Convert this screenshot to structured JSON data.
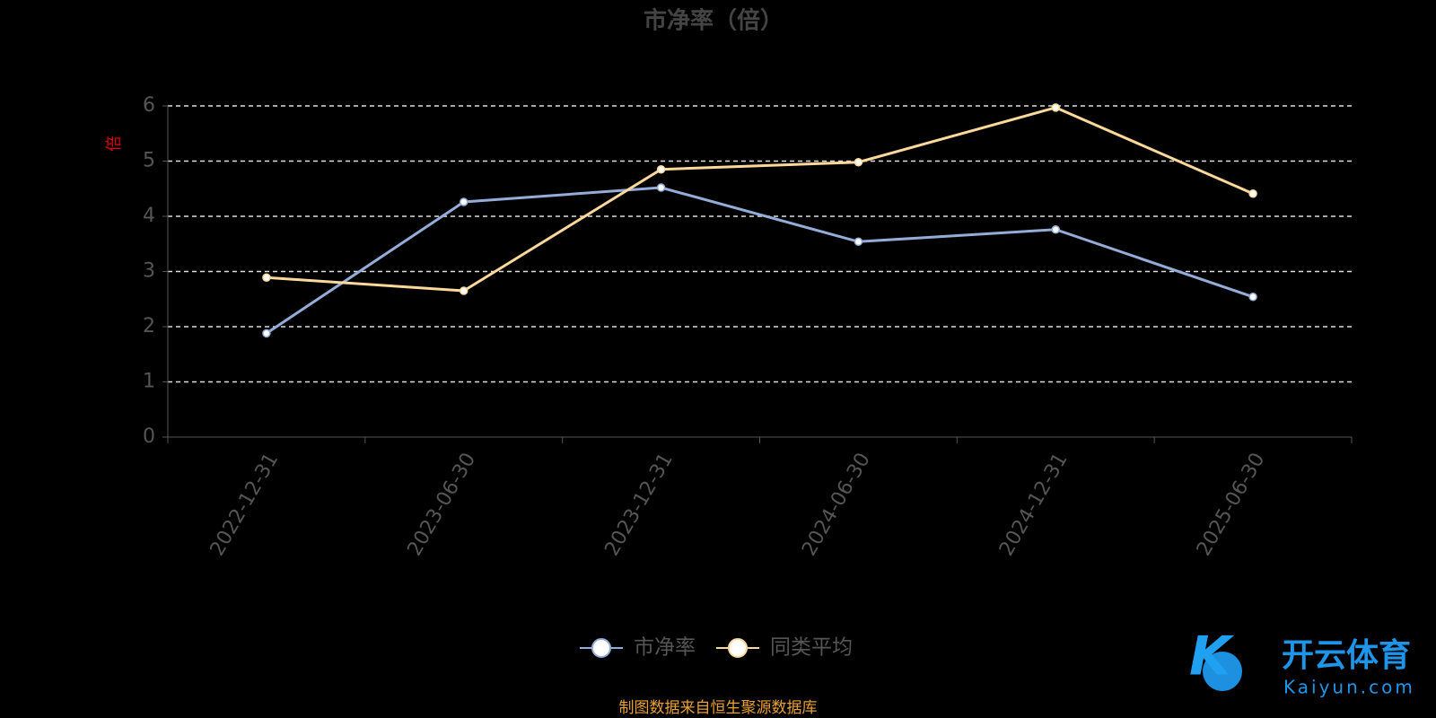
{
  "chart_data": {
    "type": "line",
    "title": "市净率（倍）",
    "y_label": "倍",
    "categories": [
      "2022-12-31",
      "2023-06-30",
      "2023-12-31",
      "2024-06-30",
      "2024-12-31",
      "2025-06-30"
    ],
    "series": [
      {
        "name": "市净率",
        "color": "#93acd8",
        "values": [
          1.88,
          4.26,
          4.52,
          3.54,
          3.76,
          2.54
        ]
      },
      {
        "name": "同类平均",
        "color": "#fcd89b",
        "values": [
          2.89,
          2.65,
          4.85,
          4.98,
          5.97,
          4.41
        ]
      }
    ],
    "ylim": [
      0,
      6
    ],
    "yticks": [
      0,
      1,
      2,
      3,
      4,
      5,
      6
    ],
    "grid": true,
    "legend": "bottom",
    "source": "制图数据来自恒生聚源数据库",
    "watermark": {
      "brand": "开云体育",
      "site": "Kaiyun.com"
    }
  }
}
